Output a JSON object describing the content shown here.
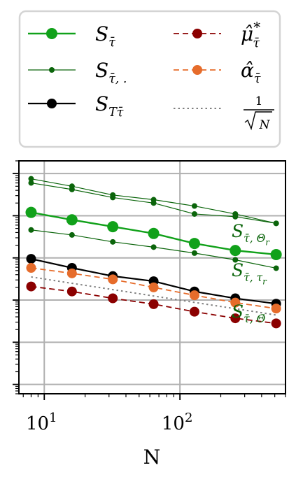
{
  "chart_data": {
    "type": "line",
    "title": "",
    "xlabel": "N",
    "ylabel": "",
    "x_scale": "log",
    "y_scale": "log",
    "xlim": [
      6.5,
      600
    ],
    "ylim": [
      0.0006,
      200
    ],
    "grid": true,
    "legend_position": "top (outside, 2 columns)",
    "x_ticks": [
      {
        "value": 10,
        "base": "10",
        "exp": "1"
      },
      {
        "value": 100,
        "base": "10",
        "exp": "2"
      }
    ],
    "x": [
      8,
      16,
      32,
      64,
      128,
      256,
      512
    ],
    "series": [
      {
        "id": "S_tau",
        "name": "S_τ̄",
        "color": "#11a11a",
        "line": "solid",
        "width": 2.4,
        "marker_r": 8,
        "values": [
          12,
          8,
          5.5,
          3.8,
          2.2,
          1.5,
          1.2
        ]
      },
      {
        "id": "S_tau_Theta_r",
        "name": "",
        "color": "#0b650b",
        "line": "solid",
        "width": 1.2,
        "marker_r": 4,
        "values": [
          75,
          50,
          31,
          24,
          17,
          11,
          6.6
        ]
      },
      {
        "id": "S_tau_Theta_r_b",
        "name": "",
        "color": "#0b650b",
        "line": "solid",
        "width": 1.2,
        "marker_r": 4,
        "values": [
          60,
          42,
          27,
          20,
          11,
          9.5,
          6.6
        ]
      },
      {
        "id": "S_tau_tau_r",
        "name": "",
        "color": "#0b650b",
        "line": "solid",
        "width": 1.2,
        "marker_r": 4,
        "values": [
          4.6,
          3.5,
          2.4,
          1.8,
          1.3,
          0.9,
          0.57
        ]
      },
      {
        "id": "S_Ttau",
        "name": "S_Tτ̄",
        "color": "#000000",
        "line": "solid",
        "width": 2.2,
        "marker_r": 7,
        "values": [
          0.95,
          0.58,
          0.37,
          0.28,
          0.16,
          0.11,
          0.082
        ]
      },
      {
        "id": "mu_hat",
        "name": "μ̂*_τ̄",
        "color": "#8b0000",
        "line": "dashed",
        "width": 1.8,
        "marker_r": 7,
        "values": [
          0.21,
          0.16,
          0.11,
          0.08,
          0.053,
          0.037,
          0.028
        ]
      },
      {
        "id": "alpha_hat",
        "name": "α̂_τ̄",
        "color": "#e66c2b",
        "line": "dashed",
        "width": 1.8,
        "marker_r": 7,
        "values": [
          0.58,
          0.43,
          0.31,
          0.2,
          0.13,
          0.087,
          0.063
        ]
      },
      {
        "id": "one_over_sqrtN",
        "name": "1/√N",
        "color": "#808080",
        "line": "dotted",
        "width": 2,
        "marker_r": 0,
        "values": [
          0.354,
          0.25,
          0.177,
          0.125,
          0.088,
          0.0625,
          0.0442
        ]
      }
    ],
    "legend": [
      {
        "series": "S_tau",
        "base": "S",
        "sub": "τ̄",
        "sup": ""
      },
      {
        "series": "S_tau_tau_r",
        "base": "S",
        "sub": "τ̄, .",
        "sup": ""
      },
      {
        "series": "S_Ttau",
        "base": "S",
        "sub": "Tτ̄",
        "sup": ""
      },
      {
        "series": "mu_hat",
        "base": "μ̂",
        "sub": "τ̄",
        "sup": "*"
      },
      {
        "series": "alpha_hat",
        "base": "α̂",
        "sub": "τ̄",
        "sup": ""
      },
      {
        "series": "one_over_sqrtN",
        "base": "",
        "sub": "",
        "sup": "",
        "frac_num": "1",
        "frac_den": "N"
      }
    ],
    "annotations": [
      {
        "base": "S",
        "sub": "τ̄, Θ",
        "subsub": "r",
        "color": "#0b650b"
      },
      {
        "base": "S",
        "sub": "τ̄, τ",
        "subsub": "r",
        "color": "#0b650b"
      },
      {
        "base": "S",
        "sub": "τ̄, Θ̄",
        "subsub": "",
        "color": "#0b650b"
      }
    ]
  }
}
